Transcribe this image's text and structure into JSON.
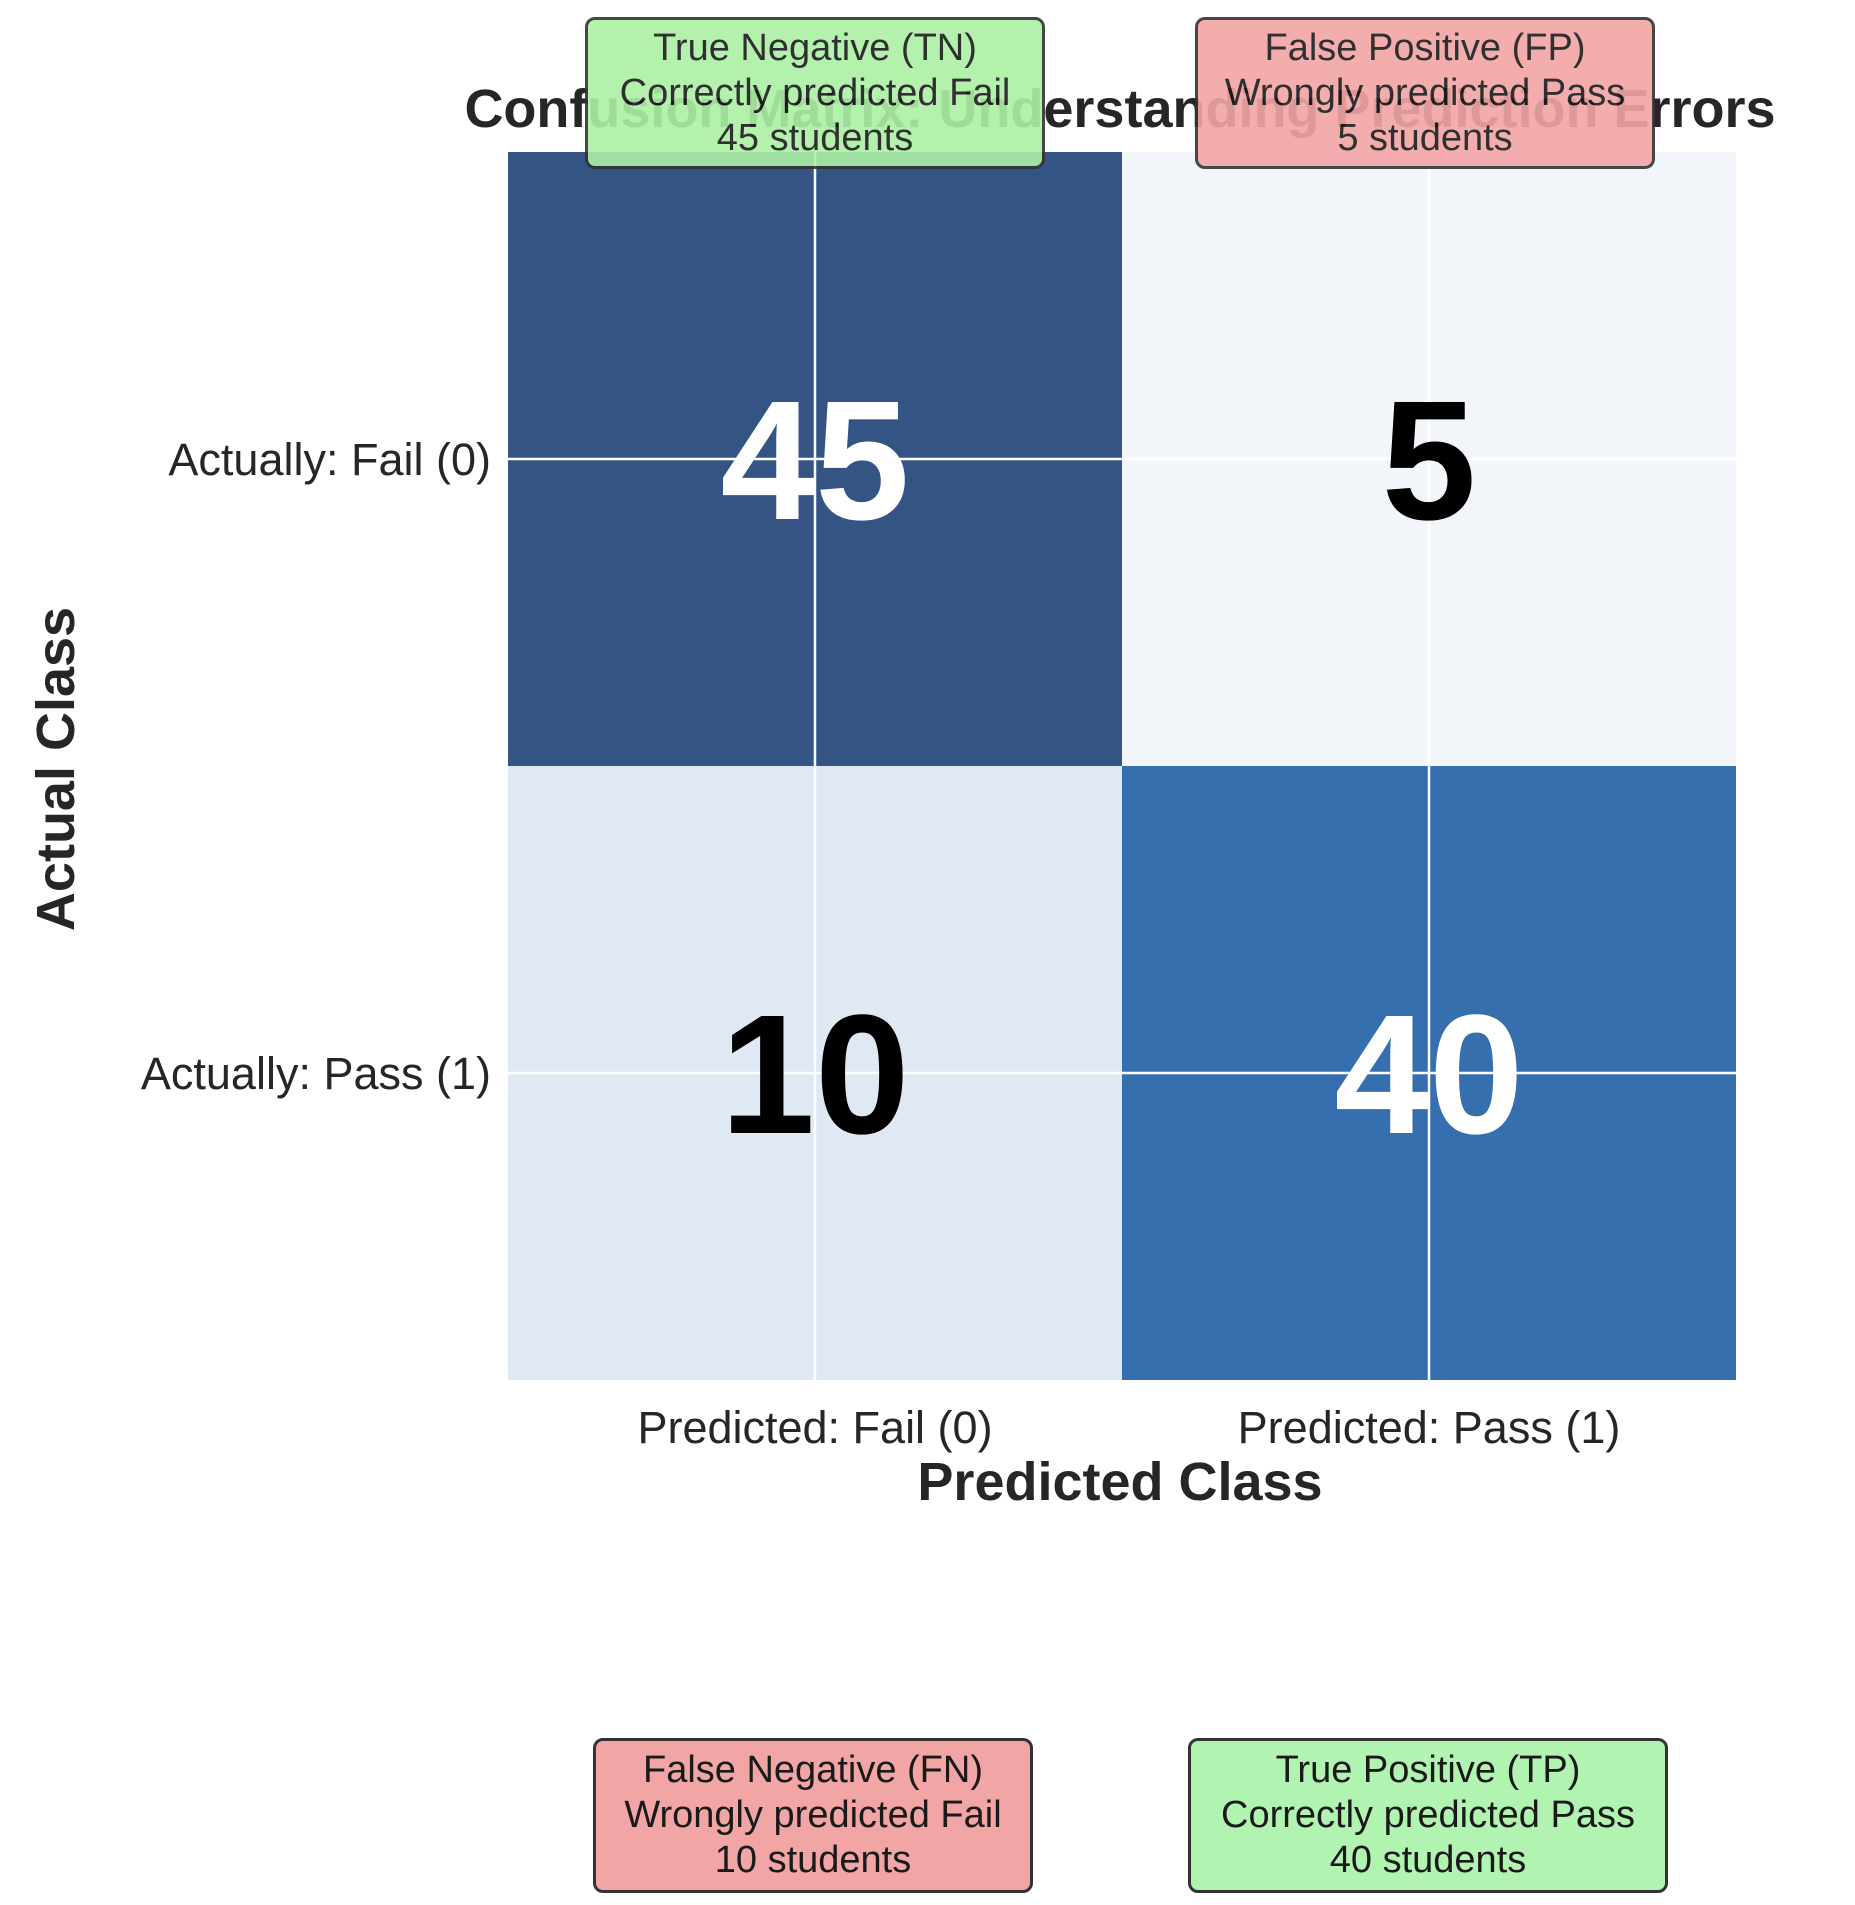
{
  "chart_data": {
    "type": "heatmap",
    "title": "Confusion Matrix: Understanding Prediction Errors",
    "xlabel": "Predicted Class",
    "ylabel": "Actual Class",
    "x_categories": [
      "Predicted: Fail (0)",
      "Predicted: Pass (1)"
    ],
    "y_categories": [
      "Actually: Fail (0)",
      "Actually: Pass (1)"
    ],
    "matrix": [
      [
        45,
        5
      ],
      [
        10,
        40
      ]
    ],
    "colormap": "Blues",
    "grid": true,
    "value_text_colors": [
      [
        "#ffffff",
        "#000000"
      ],
      [
        "#000000",
        "#ffffff"
      ]
    ],
    "cell_colors": [
      [
        "#345483",
        "#f2f6fb"
      ],
      [
        "#dfe8f3",
        "#356fad"
      ]
    ]
  },
  "annotations": {
    "tn": {
      "title": "True Negative (TN)",
      "desc": "Correctly predicted Fail",
      "count": "45 students",
      "bg": "#abf0a5"
    },
    "fp": {
      "title": "False Positive (FP)",
      "desc": "Wrongly predicted Pass",
      "count": "5 students",
      "bg": "#f2a5a5"
    },
    "fn": {
      "title": "False Negative (FN)",
      "desc": "Wrongly predicted Fail",
      "count": "10 students",
      "bg": "#f2a5a5"
    },
    "tp": {
      "title": "True Positive (TP)",
      "desc": "Correctly predicted Pass",
      "count": "40 students",
      "bg": "#b1f4b1"
    }
  }
}
